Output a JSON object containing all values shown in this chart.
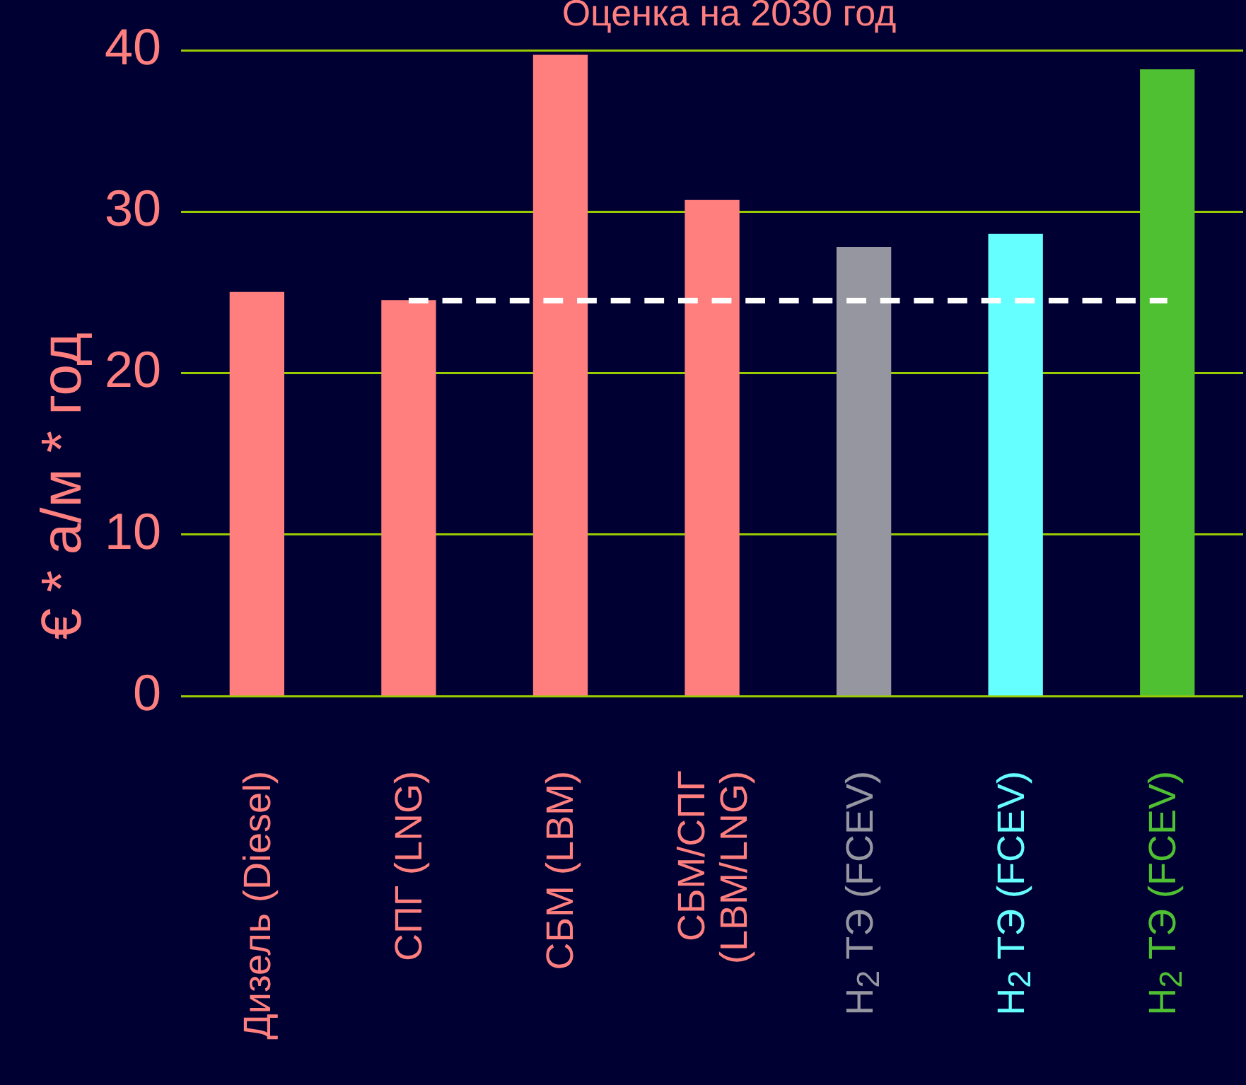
{
  "chart_data": {
    "type": "bar",
    "title": "Оценка на 2030 год",
    "ylabel": "€ * а/м * год",
    "categories": [
      "Дизель (Diesel)",
      "СПГ (LNG)",
      "СБМ (LBM)",
      "СБМ/СПГ\n(LBM/LNG)",
      "H$_{2}$ ТЭ (FCEV)",
      "H$_{2}$ ТЭ (FCEV)",
      "H$_{2}$ ТЭ (FCEV)"
    ],
    "series": [
      {
        "type": "line",
        "color": "#ffffff",
        "line_style": "dashed",
        "marker": "none",
        "values": [
          null,
          24.5,
          24.5,
          24.5,
          24.5,
          24.5,
          24.5
        ]
      },
      {
        "colors": [
          "#ff7f7f",
          "#ff7f7f",
          "#ff7f7f",
          "#ff7f7f",
          "#9696a0",
          "#66ffff",
          "#4fc032"
        ],
        "values": [
          25,
          24.5,
          39.7,
          30.7,
          27.8,
          28.6,
          38.8
        ]
      }
    ],
    "ylim": [
      0,
      40
    ],
    "yticks": [
      0,
      10,
      20,
      30,
      40
    ],
    "grid": "y",
    "legend": false
  }
}
